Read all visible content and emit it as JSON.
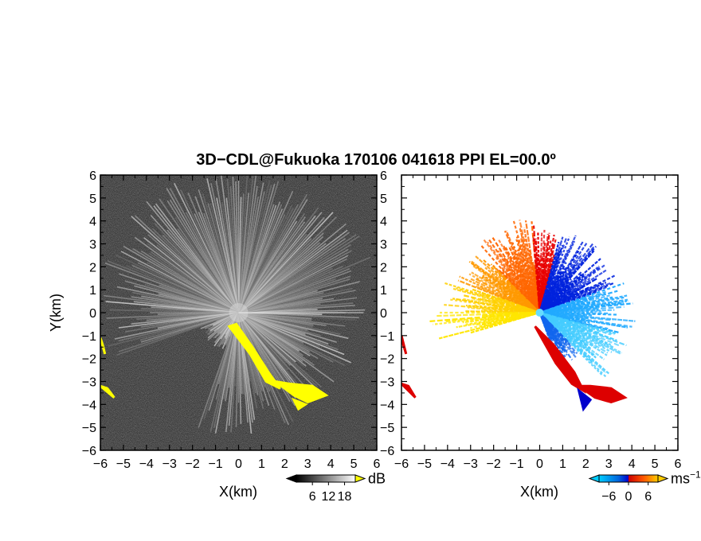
{
  "chart_data": [
    {
      "type": "heatmap",
      "title": "3D−CDL@Fukuoka 170106 041618 PPI EL=00.0º",
      "panel": "left",
      "quantity": "SNR",
      "xlabel": "X(km)",
      "ylabel": "Y(km)",
      "xlim": [
        -6,
        6
      ],
      "ylim": [
        -6,
        6
      ],
      "xticks": [
        "−6",
        "−5",
        "−4",
        "−3",
        "−2",
        "−1",
        "0",
        "1",
        "2",
        "3",
        "4",
        "5",
        "6"
      ],
      "yticks": [
        "6",
        "5",
        "4",
        "3",
        "2",
        "1",
        "0",
        "−1",
        "−2",
        "−3",
        "−4",
        "−5",
        "−6"
      ],
      "colorbar": {
        "unit": "dB",
        "ticks": [
          "6",
          "12",
          "18"
        ],
        "tick_values": [
          6,
          12,
          18
        ],
        "range": [
          0,
          22
        ],
        "colors": [
          "#000000",
          "#ffffff"
        ],
        "over_color": "#ffff00"
      },
      "background_color": "#2a2a2a",
      "highlight_color": "#ffff00",
      "highlight_regions_km": [
        {
          "points": [
            [
              -0.4,
              -0.6
            ],
            [
              0.5,
              -1.8
            ],
            [
              1.2,
              -3.0
            ],
            [
              1.8,
              -3.3
            ],
            [
              1.3,
              -2.6
            ],
            [
              0.6,
              -1.5
            ],
            [
              -0.1,
              -0.5
            ]
          ]
        },
        {
          "points": [
            [
              1.6,
              -3.0
            ],
            [
              2.4,
              -3.6
            ],
            [
              3.0,
              -3.9
            ],
            [
              3.8,
              -3.6
            ],
            [
              3.2,
              -3.2
            ],
            [
              2.2,
              -3.1
            ]
          ]
        },
        {
          "points": [
            [
              -6.0,
              -1.1
            ],
            [
              -5.8,
              -1.8
            ],
            [
              -5.9,
              -1.4
            ]
          ]
        },
        {
          "points": [
            [
              -6.0,
              -3.2
            ],
            [
              -5.4,
              -3.7
            ],
            [
              -5.7,
              -3.3
            ]
          ]
        },
        {
          "points": [
            [
              2.4,
              -3.8
            ],
            [
              2.6,
              -4.2
            ],
            [
              2.9,
              -4.0
            ]
          ]
        }
      ]
    },
    {
      "type": "heatmap",
      "panel": "right",
      "quantity": "Doppler velocity",
      "xlabel": "X(km)",
      "xlim": [
        -6,
        6
      ],
      "ylim": [
        -6,
        6
      ],
      "xticks": [
        "−6",
        "−5",
        "−4",
        "−3",
        "−2",
        "−1",
        "0",
        "1",
        "2",
        "3",
        "4",
        "5",
        "6"
      ],
      "yticks": [
        "6",
        "5",
        "4",
        "3",
        "2",
        "1",
        "0",
        "−1",
        "−2",
        "−3",
        "−4",
        "−5",
        "−6"
      ],
      "colorbar": {
        "unit": "ms",
        "unit_exponent": "−1",
        "ticks": [
          "−6",
          "0",
          "6"
        ],
        "tick_values": [
          -6,
          0,
          6
        ],
        "range": [
          -9,
          9
        ],
        "colors": [
          "#00ccff",
          "#0066dd",
          "#0000cc",
          "#cc0000",
          "#ff5500",
          "#ffcc00"
        ]
      },
      "sectors_deg_math": [
        {
          "from": 95,
          "to": 135,
          "max_km": 4.2,
          "color": "#ff6600"
        },
        {
          "from": 135,
          "to": 160,
          "max_km": 4.0,
          "color": "#ff9900"
        },
        {
          "from": 160,
          "to": 180,
          "max_km": 4.5,
          "color": "#ffd000"
        },
        {
          "from": 180,
          "to": 197,
          "max_km": 4.8,
          "color": "#ffe600"
        },
        {
          "from": 75,
          "to": 95,
          "max_km": 4.0,
          "color": "#e80000"
        },
        {
          "from": 20,
          "to": 75,
          "max_km": 3.8,
          "color": "#0022dd"
        },
        {
          "from": -15,
          "to": 20,
          "max_km": 4.2,
          "color": "#22aaff"
        },
        {
          "from": -45,
          "to": -15,
          "max_km": 4.3,
          "color": "#44ccff"
        },
        {
          "from": -70,
          "to": -45,
          "max_km": 2.5,
          "color": "#1166ee"
        }
      ],
      "edge_regions_km": [
        {
          "points": [
            [
              -0.2,
              -0.6
            ],
            [
              0.7,
              -2.2
            ],
            [
              1.4,
              -3.1
            ],
            [
              1.9,
              -3.4
            ],
            [
              1.5,
              -2.6
            ],
            [
              0.6,
              -1.4
            ]
          ],
          "color": "#dd0000"
        },
        {
          "points": [
            [
              1.7,
              -3.2
            ],
            [
              2.4,
              -3.7
            ],
            [
              3.1,
              -3.9
            ],
            [
              3.7,
              -3.7
            ],
            [
              3.1,
              -3.3
            ],
            [
              2.2,
              -3.2
            ]
          ],
          "color": "#dd0000"
        },
        {
          "points": [
            [
              1.7,
              -3.4
            ],
            [
              1.9,
              -4.2
            ],
            [
              2.2,
              -3.8
            ]
          ],
          "color": "#0000cc"
        },
        {
          "points": [
            [
              -6.0,
              -1.0
            ],
            [
              -5.8,
              -1.8
            ],
            [
              -5.95,
              -1.3
            ]
          ],
          "color": "#dd0000"
        },
        {
          "points": [
            [
              -6.0,
              -3.1
            ],
            [
              -5.4,
              -3.7
            ],
            [
              -5.7,
              -3.2
            ]
          ],
          "color": "#dd0000"
        }
      ]
    }
  ]
}
